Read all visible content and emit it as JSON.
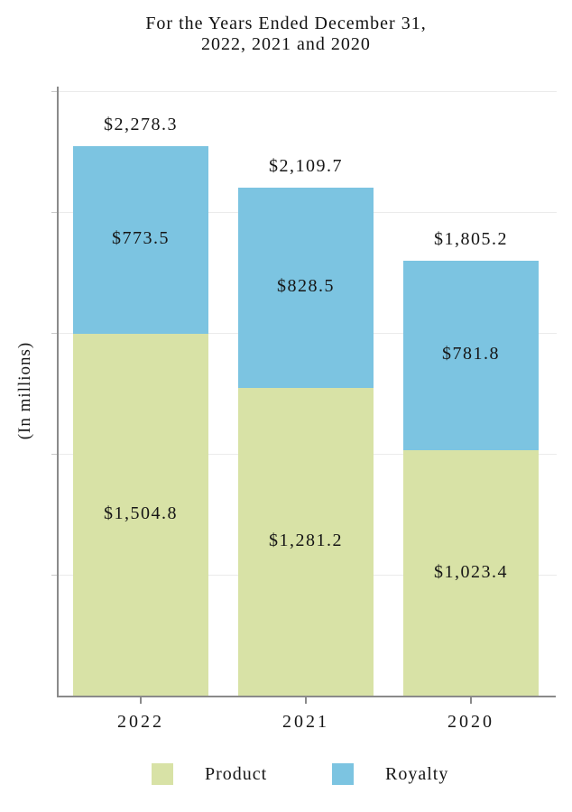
{
  "title": {
    "line1": "For the Years Ended December 31,",
    "line2": "2022, 2021 and 2020"
  },
  "chart_data": {
    "type": "bar",
    "stacked": true,
    "title": "For the Years Ended December 31, 2022, 2021 and 2020",
    "ylabel": "(In millions)",
    "xlabel": "",
    "categories": [
      "2022",
      "2021",
      "2020"
    ],
    "series": [
      {
        "name": "Product",
        "color": "#d8e2a6",
        "values": [
          1504.8,
          1281.2,
          1023.4
        ],
        "labels": [
          "$1,504.8",
          "$1,281.2",
          "$1,023.4"
        ]
      },
      {
        "name": "Royalty",
        "color": "#7cc4e1",
        "values": [
          773.5,
          828.5,
          781.8
        ],
        "labels": [
          "$773.5",
          "$828.5",
          "$781.8"
        ]
      }
    ],
    "totals": [
      2278.3,
      2109.7,
      1805.2
    ],
    "total_labels": [
      "$2,278.3",
      "$2,109.7",
      "$1,805.2"
    ],
    "ylim": [
      0,
      2500
    ],
    "grid_step": 500,
    "grid": true,
    "y_tick_labels_shown": false,
    "legend_position": "bottom"
  },
  "legend": {
    "items": [
      {
        "label": "Product",
        "color": "#d8e2a6"
      },
      {
        "label": "Royalty",
        "color": "#7cc4e1"
      }
    ]
  },
  "colors": {
    "product": "#d8e2a6",
    "royalty": "#7cc4e1",
    "axis": "#8a8a8a",
    "gridline": "#ebebeb",
    "text": "#161616"
  }
}
